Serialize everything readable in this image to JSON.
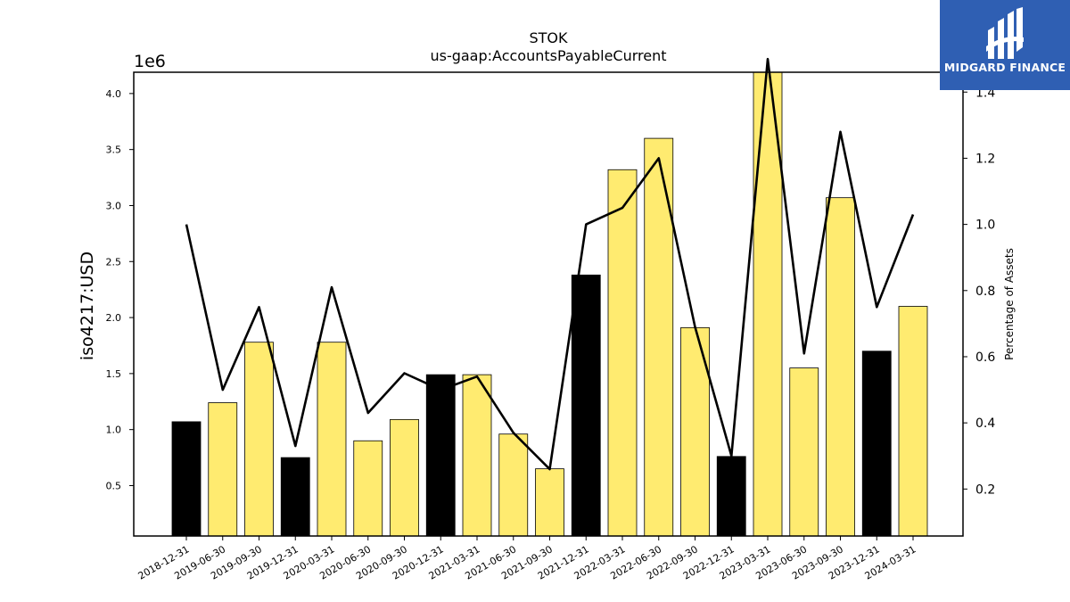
{
  "chart_data": {
    "type": "bar",
    "title": "STOK",
    "subtitle": "us-gaap:AccountsPayableCurrent",
    "ylabel": "iso4217:USD",
    "y_offset_label": "1e6",
    "y2label": "Percentage of Assets",
    "categories": [
      "2018-12-31",
      "2019-06-30",
      "2019-09-30",
      "2019-12-31",
      "2020-03-31",
      "2020-06-30",
      "2020-09-30",
      "2020-12-31",
      "2021-03-31",
      "2021-06-30",
      "2021-09-30",
      "2021-12-31",
      "2022-03-31",
      "2022-06-30",
      "2022-09-30",
      "2022-12-31",
      "2023-03-31",
      "2023-06-30",
      "2023-09-30",
      "2023-12-31",
      "2024-03-31"
    ],
    "series": [
      {
        "type": "bar",
        "values": [
          1.07,
          1.24,
          1.78,
          0.75,
          1.78,
          0.9,
          1.09,
          1.49,
          1.49,
          0.96,
          0.65,
          2.38,
          3.32,
          3.6,
          1.91,
          0.76,
          4.21,
          1.55,
          3.07,
          1.7,
          2.1
        ],
        "colors": [
          "#000000",
          "#ffeb70",
          "#ffeb70",
          "#000000",
          "#ffeb70",
          "#ffeb70",
          "#ffeb70",
          "#000000",
          "#ffeb70",
          "#ffeb70",
          "#ffeb70",
          "#000000",
          "#ffeb70",
          "#ffeb70",
          "#ffeb70",
          "#000000",
          "#ffeb70",
          "#ffeb70",
          "#ffeb70",
          "#000000",
          "#ffeb70"
        ]
      },
      {
        "type": "line",
        "axis": "right",
        "values": [
          1.0,
          0.5,
          0.75,
          0.33,
          0.81,
          0.43,
          0.55,
          0.5,
          0.54,
          0.37,
          0.26,
          1.0,
          1.05,
          1.2,
          0.69,
          0.3,
          1.5,
          0.61,
          1.28,
          0.75,
          1.03
        ],
        "color": "#000000"
      }
    ],
    "ylim": [
      0.05,
      4.19
    ],
    "y_ticks": [
      "0.5",
      "1.0",
      "1.5",
      "2.0",
      "2.5",
      "3.0",
      "3.5",
      "4.0"
    ],
    "y2lim": [
      0.058,
      1.46
    ],
    "y2_ticks": [
      "0.2",
      "0.4",
      "0.6",
      "0.8",
      "1.0",
      "1.2",
      "1.4"
    ],
    "grid": false
  },
  "logo": {
    "text": "MIDGARD FINANCE",
    "color": "#2f5fb3"
  }
}
